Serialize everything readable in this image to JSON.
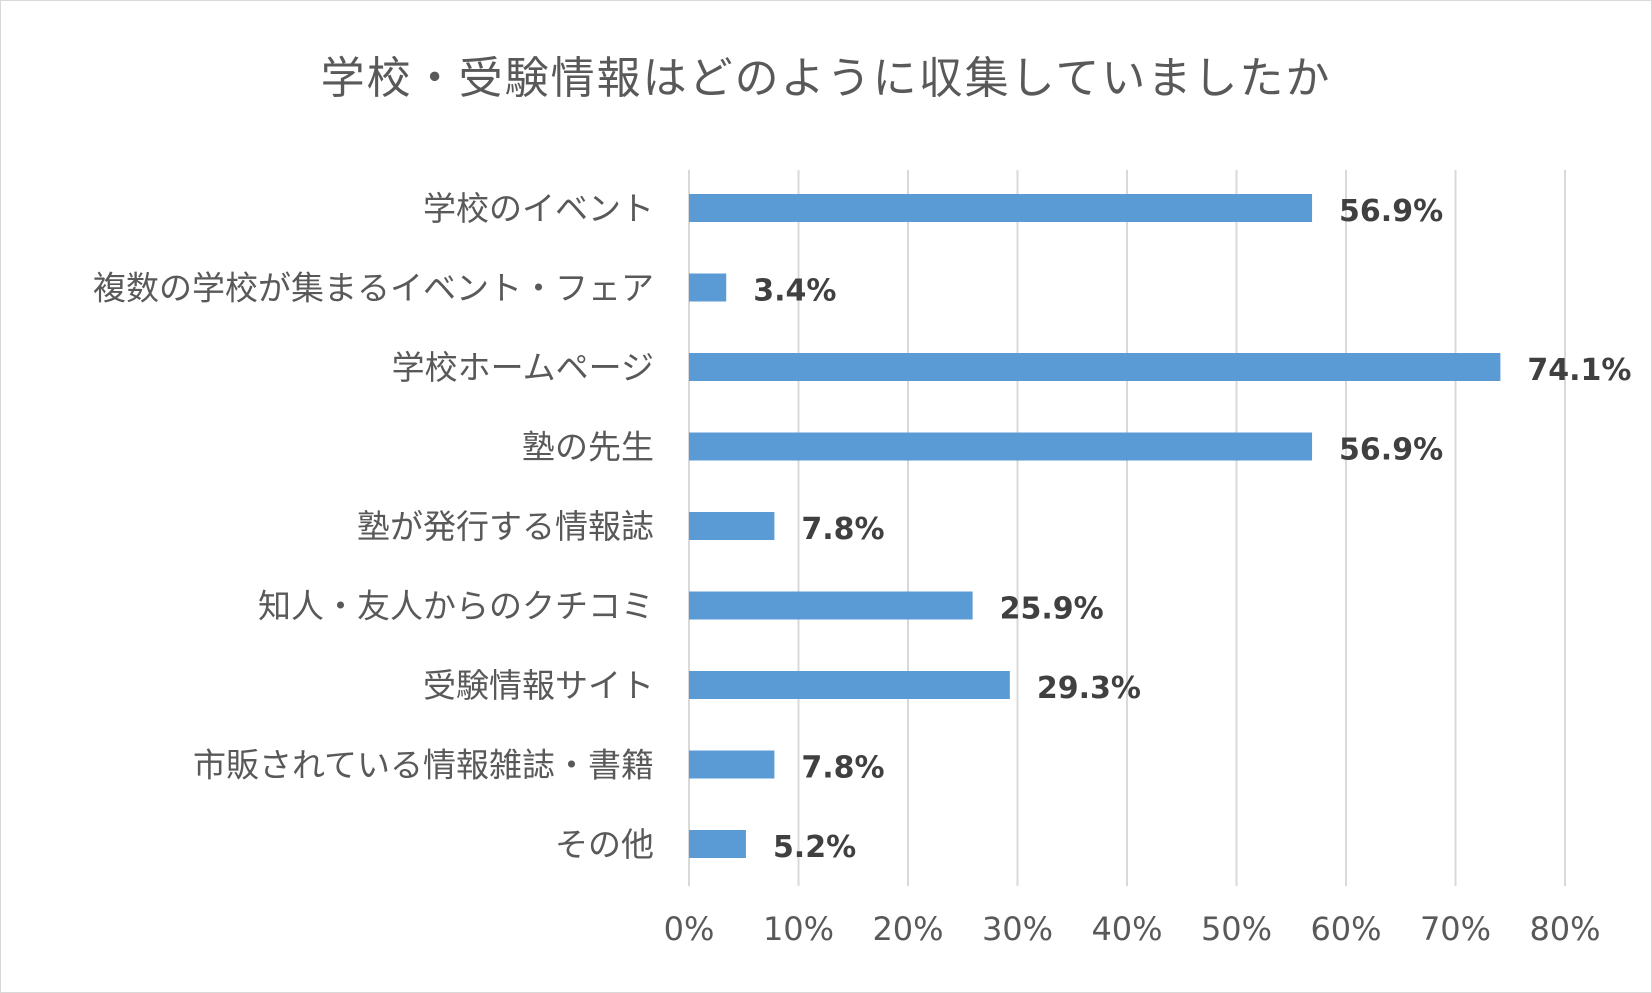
{
  "chart_data": {
    "type": "bar",
    "orientation": "horizontal",
    "title": "学校・受験情報はどのように収集していましたか",
    "categories": [
      "学校のイベント",
      "複数の学校が集まるイベント・フェア",
      "学校ホームページ",
      "塾の先生",
      "塾が発行する情報誌",
      "知人・友人からのクチコミ",
      "受験情報サイト",
      "市販されている情報雑誌・書籍",
      "その他"
    ],
    "values": [
      56.9,
      3.4,
      74.1,
      56.9,
      7.8,
      25.9,
      29.3,
      7.8,
      5.2
    ],
    "data_labels": [
      "56.9%",
      "3.4%",
      "74.1%",
      "56.9%",
      "7.8%",
      "25.9%",
      "29.3%",
      "7.8%",
      "5.2%"
    ],
    "xlim": [
      0,
      80
    ],
    "x_ticks": [
      "0%",
      "10%",
      "20%",
      "30%",
      "40%",
      "50%",
      "60%",
      "70%",
      "80%"
    ],
    "grid": true,
    "legend": "none",
    "colors": {
      "bar": "#5b9bd5",
      "grid": "#d9d9d9",
      "text": "#595959",
      "data_label": "#404040"
    }
  }
}
